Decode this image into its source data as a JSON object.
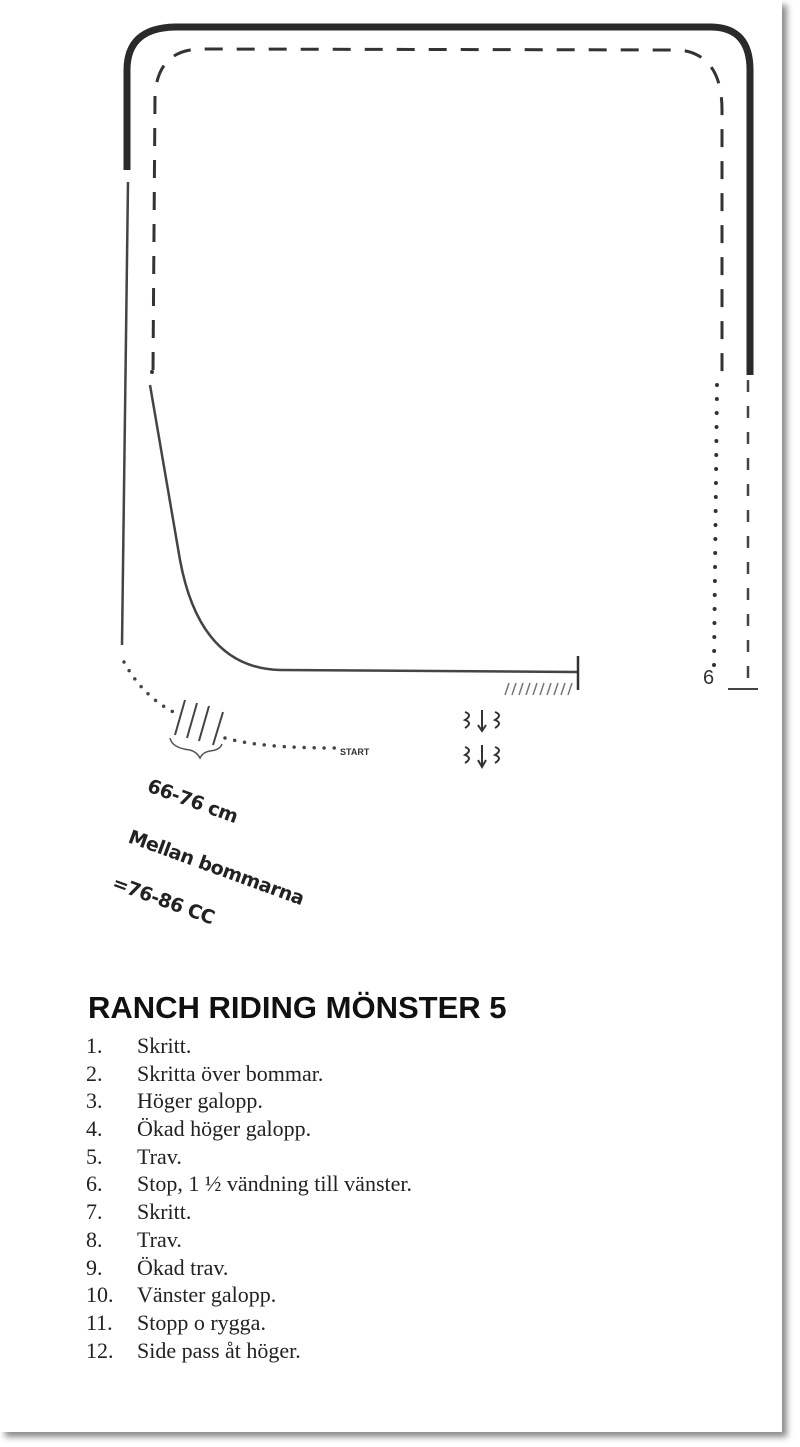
{
  "diagram": {
    "start_label": "START",
    "marker_label": "6",
    "annotations": [
      "66-76 cm",
      "Mellan bommarna",
      "=76-86 CC"
    ]
  },
  "title": "RANCH RIDING MÖNSTER 5",
  "steps": [
    {
      "num": "1.",
      "text": "Skritt."
    },
    {
      "num": "2.",
      "text": "Skritta över bommar."
    },
    {
      "num": "3.",
      "text": "Höger galopp."
    },
    {
      "num": "4.",
      "text": "Ökad höger galopp."
    },
    {
      "num": "5.",
      "text": "Trav."
    },
    {
      "num": "6.",
      "text": "Stop, 1 ½ vändning till vänster."
    },
    {
      "num": "7.",
      "text": "Skritt."
    },
    {
      "num": "8.",
      "text": "Trav."
    },
    {
      "num": "9.",
      "text": "Ökad trav."
    },
    {
      "num": "10.",
      "text": "Vänster galopp."
    },
    {
      "num": "11.",
      "text": "Stopp o rygga."
    },
    {
      "num": "12.",
      "text": "Side pass åt höger."
    }
  ]
}
